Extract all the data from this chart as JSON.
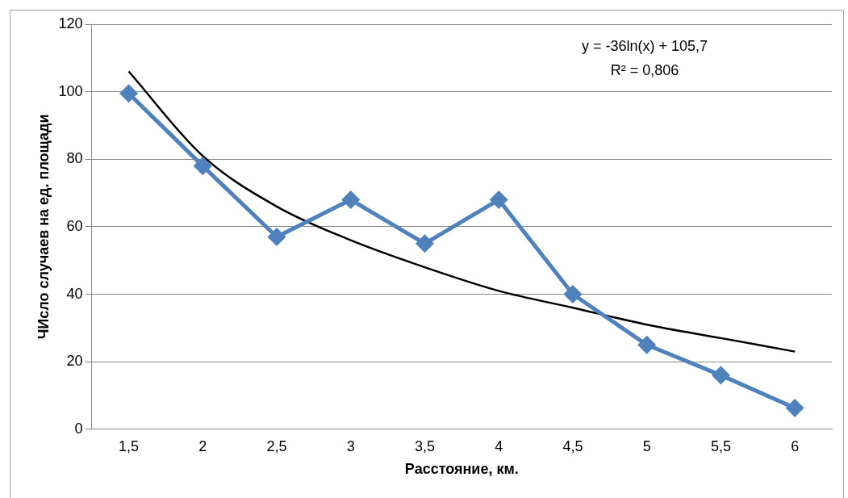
{
  "chart_data": {
    "type": "line",
    "xlabel": "Расстояние, км.",
    "ylabel": "ЧИсло случаев на ед. площади",
    "categories": [
      "1,5",
      "2",
      "2,5",
      "3",
      "3,5",
      "4",
      "4,5",
      "5",
      "5,5",
      "6"
    ],
    "series": [
      {
        "color": "#4f81bd",
        "values": [
          99.5,
          78,
          57,
          68,
          55,
          68,
          40,
          25,
          16,
          6.3
        ],
        "marker": "diamond"
      },
      {
        "color": "#000000",
        "values": [
          106,
          81,
          66,
          56,
          48,
          41,
          36,
          31,
          27,
          23
        ],
        "marker": "none"
      }
    ],
    "ylim": [
      0,
      120
    ],
    "yticks": [
      0,
      20,
      40,
      60,
      80,
      100,
      120
    ],
    "grid": "y",
    "legend": false,
    "annotations": [
      "y = -36ln(x) + 105,7",
      "R² = 0,806"
    ]
  }
}
